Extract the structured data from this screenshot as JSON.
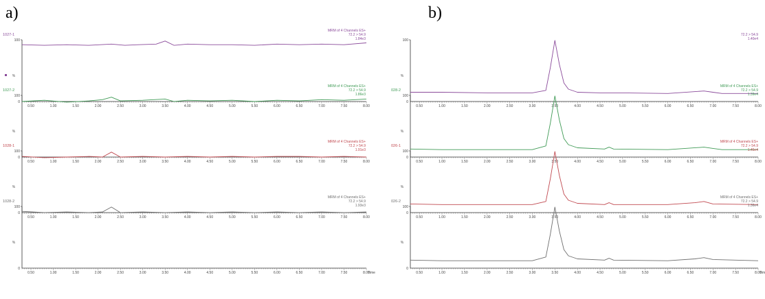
{
  "figure": {
    "panel_a_label": "a)",
    "panel_b_label": "b)"
  },
  "chart_data": [
    {
      "panel": "a",
      "type": "line",
      "xlim": [
        0.3,
        8.0
      ],
      "ylim": [
        0,
        100
      ],
      "x_ticks": [
        "0.50",
        "1.00",
        "1.50",
        "2.00",
        "2.50",
        "3.00",
        "3.50",
        "4.00",
        "4.50",
        "5.00",
        "5.50",
        "6.00",
        "6.50",
        "7.00",
        "7.50",
        "8.00"
      ],
      "xlabel": "Time",
      "traces": [
        {
          "sample": "1027-1",
          "channel": "MRM of 4 Channels ES+",
          "transition": "72.2 > 54.9",
          "intensity": "1.84e3",
          "ylabel": "%",
          "color": "#8a4a9a",
          "x": [
            0.3,
            0.8,
            1.3,
            1.8,
            2.3,
            2.6,
            2.9,
            3.3,
            3.5,
            3.7,
            4.0,
            4.5,
            5.0,
            5.5,
            6.0,
            6.5,
            7.0,
            7.5,
            8.0
          ],
          "y": [
            92,
            91,
            92,
            91,
            93,
            91,
            92,
            93,
            98,
            91,
            93,
            92,
            92,
            91,
            93,
            92,
            93,
            92,
            95
          ]
        },
        {
          "sample": "1027-2",
          "channel": "MRM of 4 Channels ES+",
          "transition": "72.2 > 54.9",
          "intensity": "1.86e3",
          "ylabel": "%",
          "color": "#3f9a55",
          "x": [
            0.3,
            0.8,
            1.3,
            1.8,
            2.1,
            2.3,
            2.5,
            3.0,
            3.5,
            3.7,
            4.0,
            4.5,
            5.0,
            5.5,
            6.0,
            6.5,
            7.0,
            7.5,
            8.0
          ],
          "y": [
            90,
            92,
            89,
            91,
            93,
            97,
            91,
            92,
            94,
            90,
            92,
            91,
            92,
            90,
            92,
            91,
            93,
            92,
            94
          ]
        },
        {
          "sample": "1028-1",
          "channel": "MRM of 4 Channels ES+",
          "transition": "72.2 > 54.9",
          "intensity": "1.91e3",
          "ylabel": "%",
          "color": "#c0484f",
          "x": [
            0.3,
            0.8,
            1.3,
            1.8,
            2.1,
            2.3,
            2.5,
            3.0,
            3.5,
            4.0,
            4.5,
            5.0,
            5.5,
            6.0,
            6.5,
            7.0,
            7.5,
            8.0
          ],
          "y": [
            91,
            89,
            90,
            91,
            90,
            98,
            90,
            91,
            90,
            91,
            90,
            91,
            90,
            91,
            91,
            90,
            91,
            90
          ]
        },
        {
          "sample": "1028-2",
          "channel": "MRM of 4 Channels ES+",
          "transition": "72.2 > 54.9",
          "intensity": "1.93e3",
          "ylabel": "%",
          "color": "#6e6e6e",
          "x": [
            0.3,
            0.8,
            1.3,
            1.8,
            2.1,
            2.3,
            2.5,
            3.0,
            3.5,
            4.0,
            4.5,
            5.0,
            5.5,
            6.0,
            6.5,
            7.0,
            7.5,
            8.0
          ],
          "y": [
            92,
            90,
            91,
            90,
            91,
            99,
            90,
            91,
            90,
            91,
            90,
            91,
            90,
            91,
            90,
            91,
            90,
            91
          ]
        }
      ]
    },
    {
      "panel": "b",
      "type": "line",
      "xlim": [
        0.3,
        8.0
      ],
      "ylim": [
        0,
        100
      ],
      "x_ticks": [
        "0.50",
        "1.00",
        "1.50",
        "2.00",
        "2.50",
        "3.00",
        "3.50",
        "4.00",
        "4.50",
        "5.00",
        "5.50",
        "6.00",
        "6.50",
        "7.00",
        "7.50",
        "8.00"
      ],
      "xlabel": "Time",
      "traces": [
        {
          "sample": "",
          "channel": "",
          "transition": "72.2 > 54.9",
          "intensity": "1.40e4",
          "ylabel": "%",
          "color": "#8a4a9a",
          "x": [
            0.3,
            1.0,
            2.0,
            3.0,
            3.3,
            3.4,
            3.5,
            3.6,
            3.7,
            3.8,
            4.0,
            4.5,
            5.0,
            6.0,
            6.8,
            7.0,
            7.2,
            8.0
          ],
          "y": [
            15,
            15,
            14,
            14,
            18,
            55,
            99,
            60,
            30,
            20,
            15,
            14,
            14,
            13,
            17,
            15,
            13,
            13
          ]
        },
        {
          "sample": "028-2",
          "channel": "MRM of 4 Channels ES+",
          "transition": "72.2 > 54.9",
          "intensity": "1.39e4",
          "ylabel": "%",
          "color": "#3f9a55",
          "x": [
            0.3,
            1.0,
            2.0,
            3.0,
            3.3,
            3.4,
            3.5,
            3.6,
            3.7,
            3.8,
            4.0,
            4.6,
            4.7,
            4.8,
            6.0,
            6.8,
            7.0,
            7.2,
            8.0
          ],
          "y": [
            13,
            12,
            12,
            12,
            18,
            55,
            99,
            60,
            30,
            20,
            15,
            13,
            16,
            13,
            12,
            16,
            14,
            12,
            12
          ]
        },
        {
          "sample": "026-1",
          "channel": "MRM of 4 Channels ES+",
          "transition": "72.2 > 54.9",
          "intensity": "1.45e4",
          "ylabel": "%",
          "color": "#c0484f",
          "x": [
            0.3,
            1.0,
            2.0,
            3.0,
            3.3,
            3.4,
            3.5,
            3.6,
            3.7,
            3.8,
            4.0,
            4.6,
            4.7,
            4.8,
            6.0,
            6.6,
            6.8,
            7.0,
            8.0
          ],
          "y": [
            14,
            13,
            13,
            13,
            18,
            55,
            99,
            60,
            30,
            20,
            15,
            13,
            16,
            13,
            13,
            16,
            18,
            14,
            13
          ]
        },
        {
          "sample": "026-2",
          "channel": "MRM of 4 Channels ES+",
          "transition": "72.2 > 54.9",
          "intensity": "1.36e4",
          "ylabel": "%",
          "color": "#6e6e6e",
          "x": [
            0.3,
            1.0,
            2.0,
            3.0,
            3.3,
            3.4,
            3.5,
            3.6,
            3.7,
            3.8,
            4.0,
            4.6,
            4.7,
            4.8,
            6.0,
            6.6,
            6.8,
            7.0,
            8.0
          ],
          "y": [
            13,
            12,
            12,
            12,
            18,
            55,
            99,
            60,
            30,
            20,
            15,
            13,
            16,
            13,
            12,
            15,
            17,
            14,
            12
          ]
        }
      ]
    }
  ]
}
